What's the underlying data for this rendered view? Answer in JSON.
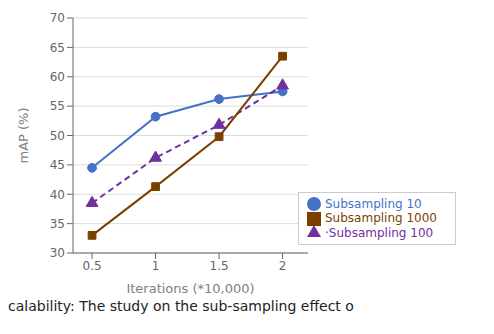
{
  "chart_data": {
    "type": "line",
    "x": [
      0.5,
      1,
      1.5,
      2
    ],
    "series": [
      {
        "name": "Subsampling 10",
        "color": "#4472C4",
        "marker": "circle",
        "line_style": "solid",
        "values": [
          44.5,
          53.2,
          56.2,
          57.5
        ]
      },
      {
        "name": "·Subsampling 100",
        "color": "#7030A0",
        "marker": "triangle",
        "line_style": "dashed",
        "values": [
          38.5,
          46.2,
          51.8,
          58.5
        ]
      },
      {
        "name": "Subsampling 1000",
        "color": "#7B3F00",
        "marker": "square",
        "line_style": "solid",
        "values": [
          33.0,
          41.3,
          49.8,
          63.5
        ]
      }
    ],
    "xlabel": "Iterations (*10,000)",
    "ylabel": "mAP (%)",
    "xlim": [
      0.35,
      2.2
    ],
    "xticks": [
      0.5,
      1,
      1.5,
      2
    ],
    "ylim": [
      30,
      70
    ],
    "yticks": [
      30,
      35,
      40,
      45,
      50,
      55,
      60,
      65,
      70
    ],
    "grid": true,
    "legend": "lower right",
    "caption": "calability: The study on the sub-sampling effect o"
  }
}
